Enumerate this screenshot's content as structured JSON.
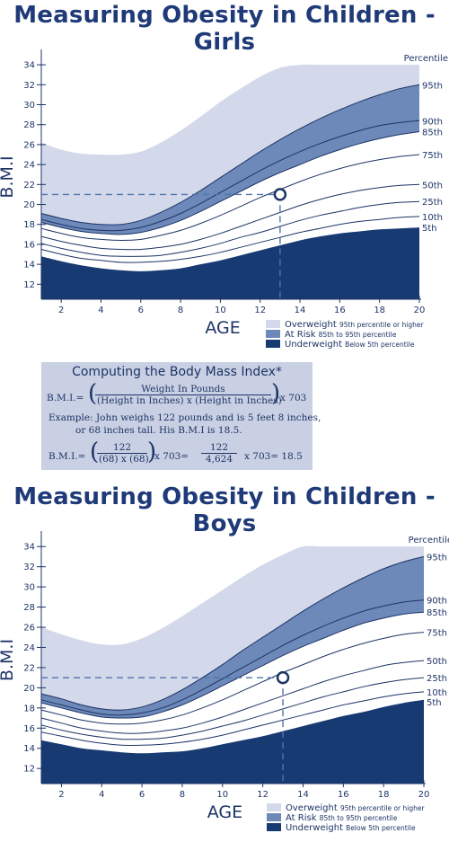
{
  "colors": {
    "overweight": "#d3d9ea",
    "at_risk": "#6d89b9",
    "underweight": "#183a72",
    "lines": "#1d3466",
    "axis": "#1d3466",
    "guide": "#4f73aa"
  },
  "legend": [
    {
      "key": "overweight",
      "label": "Overweight",
      "sub": "95th percentile or higher"
    },
    {
      "key": "at_risk",
      "label": "At Risk",
      "sub": "85th to 95th percentile"
    },
    {
      "key": "underweight",
      "label": "Underweight",
      "sub": "Below 5th percentile"
    }
  ],
  "formula": {
    "title": "Computing the Body Mass Index*",
    "lhs": "B.M.I.=",
    "numerator": "Weight In Pounds",
    "denominator": "(Height in Inches) x (Height in Inches)",
    "times": "x 703",
    "example_line1": "Example: John weighs 122 pounds and is 5 feet 8 inches,",
    "example_line2": "or 68 inches tall. His B.M.I is 18.5.",
    "lhs2": "B.M.I.=",
    "ex_num": "122",
    "ex_den": "(68) x (68)",
    "ex_times": "x 703=",
    "ex_num2": "122",
    "ex_den2": "4,624",
    "ex_result": "x 703= 18.5"
  },
  "chart_data": [
    {
      "type": "area",
      "title": "Measuring Obesity in Children - Girls",
      "xlabel": "AGE",
      "ylabel": "B.M.I",
      "x_ticks": [
        2,
        4,
        6,
        8,
        10,
        12,
        14,
        16,
        18,
        20
      ],
      "y_ticks": [
        12,
        14,
        16,
        18,
        20,
        22,
        24,
        26,
        28,
        30,
        32,
        34
      ],
      "xlim": [
        1,
        20
      ],
      "ylim": [
        10.5,
        35
      ],
      "percentile_header": "Percentile",
      "x": [
        1,
        2,
        3,
        4,
        5,
        6,
        7,
        8,
        9,
        10,
        11,
        12,
        13,
        14,
        15,
        16,
        17,
        18,
        19,
        20
      ],
      "overweight_top": [
        26.2,
        25.5,
        25.1,
        25.0,
        25.0,
        25.3,
        26.2,
        27.4,
        28.8,
        30.3,
        31.6,
        32.8,
        33.7,
        34.0,
        34.0,
        34.0,
        34.0,
        34.0,
        34.0,
        34.0
      ],
      "series": [
        {
          "name": "95th",
          "values": [
            19.1,
            18.6,
            18.2,
            18.0,
            18.0,
            18.4,
            19.2,
            20.2,
            21.4,
            22.7,
            24.0,
            25.3,
            26.5,
            27.6,
            28.6,
            29.5,
            30.3,
            31.0,
            31.6,
            32.0
          ]
        },
        {
          "name": "90th",
          "values": [
            18.5,
            18.0,
            17.6,
            17.4,
            17.4,
            17.7,
            18.3,
            19.1,
            20.1,
            21.2,
            22.3,
            23.4,
            24.4,
            25.3,
            26.1,
            26.8,
            27.4,
            27.9,
            28.2,
            28.4
          ]
        },
        {
          "name": "85th",
          "values": [
            18.2,
            17.7,
            17.3,
            17.1,
            17.0,
            17.2,
            17.7,
            18.4,
            19.3,
            20.3,
            21.3,
            22.3,
            23.2,
            24.0,
            24.8,
            25.5,
            26.1,
            26.6,
            27.0,
            27.3
          ]
        },
        {
          "name": "75th",
          "values": [
            17.6,
            17.1,
            16.7,
            16.5,
            16.4,
            16.5,
            16.9,
            17.4,
            18.1,
            18.9,
            19.8,
            20.7,
            21.5,
            22.3,
            23.0,
            23.6,
            24.1,
            24.5,
            24.8,
            25.0
          ]
        },
        {
          "name": "50th",
          "values": [
            16.8,
            16.3,
            15.9,
            15.6,
            15.5,
            15.5,
            15.7,
            16.0,
            16.5,
            17.1,
            17.8,
            18.5,
            19.2,
            19.9,
            20.5,
            21.0,
            21.4,
            21.7,
            21.9,
            22.0
          ]
        },
        {
          "name": "25th",
          "values": [
            16.1,
            15.6,
            15.2,
            14.9,
            14.8,
            14.8,
            14.9,
            15.2,
            15.6,
            16.1,
            16.7,
            17.2,
            17.8,
            18.4,
            18.9,
            19.3,
            19.7,
            20.0,
            20.2,
            20.3
          ]
        },
        {
          "name": "10th",
          "values": [
            15.5,
            15.0,
            14.6,
            14.4,
            14.2,
            14.2,
            14.3,
            14.5,
            14.8,
            15.2,
            15.7,
            16.2,
            16.7,
            17.2,
            17.6,
            18.0,
            18.3,
            18.5,
            18.7,
            18.8
          ]
        },
        {
          "name": "5th",
          "values": [
            14.8,
            14.3,
            13.9,
            13.6,
            13.4,
            13.3,
            13.4,
            13.6,
            14.0,
            14.4,
            14.9,
            15.4,
            15.9,
            16.4,
            16.8,
            17.1,
            17.3,
            17.5,
            17.6,
            17.7
          ]
        }
      ],
      "marker": {
        "age": 13,
        "bmi": 21
      }
    },
    {
      "type": "area",
      "title": "Measuring Obesity in Children - Boys",
      "xlabel": "AGE",
      "ylabel": "B.M.I",
      "x_ticks": [
        2,
        4,
        6,
        8,
        10,
        12,
        14,
        16,
        18,
        20
      ],
      "y_ticks": [
        12,
        14,
        16,
        18,
        20,
        22,
        24,
        26,
        28,
        30,
        32,
        34
      ],
      "xlim": [
        1,
        20
      ],
      "ylim": [
        10.5,
        35
      ],
      "percentile_header": "Percentile",
      "x": [
        1,
        2,
        3,
        4,
        5,
        6,
        7,
        8,
        9,
        10,
        11,
        12,
        13,
        14,
        15,
        16,
        17,
        18,
        19,
        20
      ],
      "overweight_top": [
        26.0,
        25.3,
        24.7,
        24.3,
        24.3,
        24.9,
        25.9,
        27.1,
        28.4,
        29.7,
        31.0,
        32.2,
        33.2,
        34.0,
        34.0,
        34.0,
        34.0,
        34.0,
        34.0,
        34.0
      ],
      "series": [
        {
          "name": "95th",
          "values": [
            19.4,
            18.9,
            18.3,
            17.9,
            17.8,
            18.1,
            18.8,
            19.8,
            21.0,
            22.3,
            23.7,
            25.0,
            26.3,
            27.6,
            28.8,
            29.9,
            30.9,
            31.8,
            32.5,
            33.0
          ]
        },
        {
          "name": "90th",
          "values": [
            18.8,
            18.3,
            17.8,
            17.4,
            17.3,
            17.5,
            18.0,
            18.8,
            19.8,
            20.9,
            22.0,
            23.1,
            24.2,
            25.2,
            26.1,
            26.9,
            27.6,
            28.1,
            28.5,
            28.7
          ]
        },
        {
          "name": "85th",
          "values": [
            18.5,
            18.0,
            17.5,
            17.1,
            17.0,
            17.1,
            17.6,
            18.3,
            19.2,
            20.2,
            21.2,
            22.2,
            23.2,
            24.1,
            24.9,
            25.7,
            26.4,
            26.9,
            27.3,
            27.5
          ]
        },
        {
          "name": "75th",
          "values": [
            17.8,
            17.3,
            16.8,
            16.5,
            16.4,
            16.5,
            16.8,
            17.3,
            18.0,
            18.8,
            19.7,
            20.6,
            21.5,
            22.3,
            23.1,
            23.8,
            24.4,
            24.9,
            25.3,
            25.5
          ]
        },
        {
          "name": "50th",
          "values": [
            17.0,
            16.5,
            16.0,
            15.7,
            15.5,
            15.5,
            15.7,
            16.0,
            16.5,
            17.1,
            17.8,
            18.5,
            19.2,
            19.9,
            20.6,
            21.2,
            21.7,
            22.2,
            22.5,
            22.7
          ]
        },
        {
          "name": "25th",
          "values": [
            16.3,
            15.8,
            15.4,
            15.1,
            14.9,
            14.9,
            15.0,
            15.3,
            15.7,
            16.2,
            16.7,
            17.3,
            17.9,
            18.5,
            19.1,
            19.6,
            20.1,
            20.5,
            20.8,
            21.0
          ]
        },
        {
          "name": "10th",
          "values": [
            15.6,
            15.2,
            14.8,
            14.5,
            14.3,
            14.3,
            14.4,
            14.6,
            14.9,
            15.3,
            15.8,
            16.3,
            16.8,
            17.3,
            17.8,
            18.3,
            18.7,
            19.1,
            19.4,
            19.6
          ]
        },
        {
          "name": "5th",
          "values": [
            14.8,
            14.4,
            14.0,
            13.8,
            13.6,
            13.5,
            13.6,
            13.7,
            14.0,
            14.4,
            14.8,
            15.2,
            15.7,
            16.2,
            16.7,
            17.2,
            17.6,
            18.1,
            18.5,
            18.8
          ]
        }
      ],
      "marker": {
        "age": 13,
        "bmi": 21
      }
    }
  ]
}
